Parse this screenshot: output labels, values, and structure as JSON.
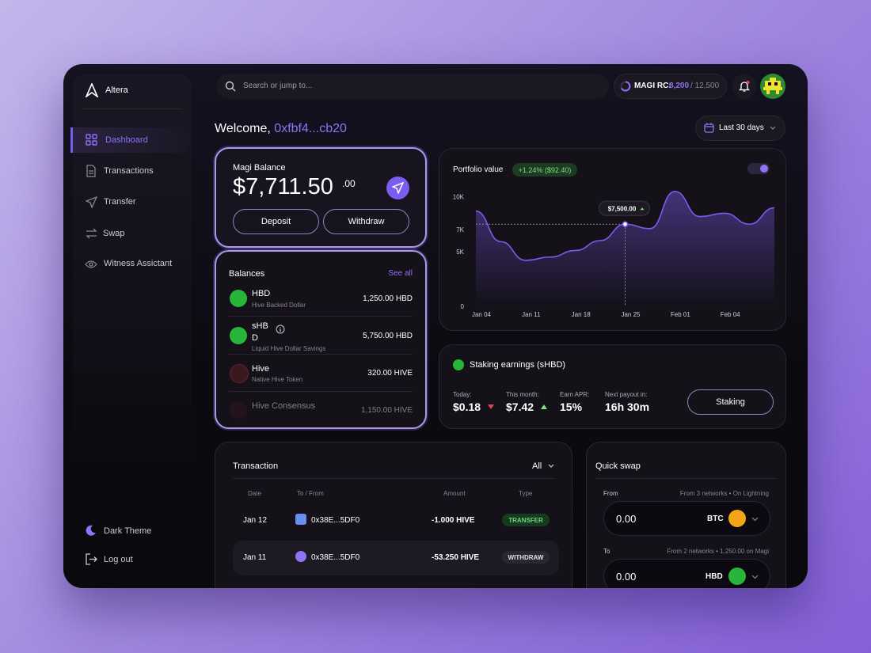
{
  "app": {
    "name": "Altera"
  },
  "nav": [
    "Dashboard",
    "Transactions",
    "Transfer",
    "Swap",
    "Witness Assictant"
  ],
  "footer_nav": [
    "Dark Theme",
    "Log out"
  ],
  "search": {
    "placeholder": "Search or jump to..."
  },
  "rc": {
    "label": "MAGI RC:",
    "value": "8,200",
    "max": "/ 12,500"
  },
  "welcome": {
    "greeting": "Welcome,",
    "address": "0xfbf4...cb20"
  },
  "range": "Last 30 days",
  "balance": {
    "label": "Magi Balance",
    "amount": "$7,711.50",
    "cents": ".00",
    "buttons": [
      "Deposit",
      "Withdraw"
    ]
  },
  "balances": {
    "title": "Balances",
    "link": "See all",
    "rows": [
      {
        "symbol": "HBD",
        "name": "Hive Backed Dollar",
        "amount": "1,250.00 HBD"
      },
      {
        "symbol": "sHB D",
        "name": "Liquid Hive Dollar Savings",
        "amount": "5,750.00 HBD"
      },
      {
        "symbol": "Hive",
        "name": "Native Hive Token",
        "amount": "320.00 HIVE"
      },
      {
        "symbol": "Hive Consensus",
        "amount": "1,150.00 HIVE"
      }
    ]
  },
  "chart_data": {
    "type": "area",
    "title": "Portfolio value",
    "badge": "+1.24% ($92.40)",
    "categories": [
      "Jan 04",
      null,
      "Jan 11",
      null,
      "Jan 18",
      null,
      "Jan 25",
      null,
      "Feb 01",
      null,
      "Feb 04",
      null,
      null
    ],
    "values": [
      8700,
      5900,
      4200,
      4500,
      5100,
      6000,
      7500,
      7100,
      10500,
      8200,
      8500,
      7500,
      9000
    ],
    "value_labels": [
      null,
      null,
      null,
      null,
      null,
      null,
      "$7,500.00",
      null,
      null,
      null,
      null,
      null,
      null
    ],
    "color": "#7b5cf0",
    "ylim": [
      0,
      12000
    ],
    "yticks": [
      0,
      {
        "value": 5000,
        "label": "5K"
      },
      {
        "value": 7000,
        "label": "7K"
      },
      {
        "value": 10000,
        "label": "10K"
      }
    ]
  },
  "staking": {
    "title": "Staking earnings (sHBD)",
    "stats": [
      {
        "label": "Today:",
        "value": "$0.18",
        "trend": "down"
      },
      {
        "label": "This month:",
        "value": "$7.42",
        "trend": "up"
      },
      {
        "label": "Earn APR:",
        "value": "15%"
      },
      {
        "label": "Next payout in:",
        "value": "16h 30m"
      }
    ],
    "button": "Staking"
  },
  "transactions": {
    "title": "Transaction",
    "filter": "All",
    "columns": [
      "Date",
      "To / From",
      "Amount",
      "Type"
    ],
    "rows": [
      [
        "Jan 12",
        "0x38E...5DF0",
        "-1.000 HIVE",
        "TRANSFER"
      ],
      [
        "Jan 11",
        "0x38E...5DF0",
        "-53.250 HIVE",
        "WITHDRAW"
      ]
    ]
  },
  "quick_swap": {
    "title": "Quick swap",
    "from": {
      "label": "From",
      "info": [
        "From 3 networks",
        "On Lightning"
      ],
      "amount": "0.00",
      "asset": "BTC"
    },
    "to": {
      "label": "To",
      "info": [
        "From 2 networks",
        "1,250.00 on Magi"
      ],
      "amount": "0.00",
      "asset": "HBD"
    }
  }
}
